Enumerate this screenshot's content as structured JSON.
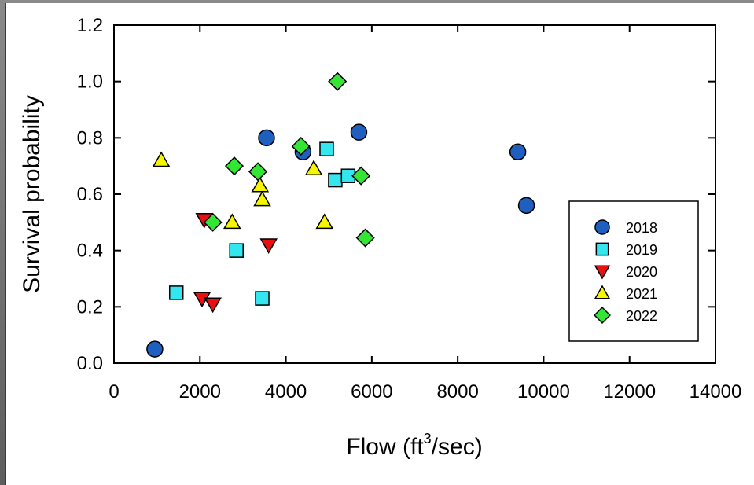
{
  "chart_data": {
    "type": "scatter",
    "title": "",
    "xlabel": "Flow (ft³/sec)",
    "xlabel_parts": {
      "prefix": "Flow (ft",
      "sup": "3",
      "suffix": "/sec)"
    },
    "ylabel": "Survival probability",
    "xlim": [
      0,
      14000
    ],
    "ylim": [
      0,
      1.2
    ],
    "x_ticks": [
      "0",
      "2000",
      "4000",
      "6000",
      "8000",
      "10000",
      "12000",
      "14000"
    ],
    "y_ticks": [
      "0.0",
      "0.2",
      "0.4",
      "0.6",
      "0.8",
      "1.0",
      "1.2"
    ],
    "grid": false,
    "legend_position": "bottom-right",
    "series": [
      {
        "name": "2018",
        "marker": "circle",
        "color": "#1f5fbf",
        "points": [
          {
            "x": 950,
            "y": 0.05
          },
          {
            "x": 3550,
            "y": 0.8
          },
          {
            "x": 4400,
            "y": 0.75
          },
          {
            "x": 5700,
            "y": 0.82
          },
          {
            "x": 9400,
            "y": 0.75
          },
          {
            "x": 9600,
            "y": 0.56
          }
        ]
      },
      {
        "name": "2019",
        "marker": "square",
        "color": "#33e6f0",
        "points": [
          {
            "x": 1450,
            "y": 0.25
          },
          {
            "x": 2850,
            "y": 0.4
          },
          {
            "x": 3450,
            "y": 0.23
          },
          {
            "x": 4950,
            "y": 0.76
          },
          {
            "x": 5150,
            "y": 0.65
          },
          {
            "x": 5450,
            "y": 0.665
          }
        ]
      },
      {
        "name": "2020",
        "marker": "triangle-down",
        "color": "#e81010",
        "points": [
          {
            "x": 2100,
            "y": 0.51
          },
          {
            "x": 2050,
            "y": 0.23
          },
          {
            "x": 2300,
            "y": 0.21
          },
          {
            "x": 3600,
            "y": 0.42
          }
        ]
      },
      {
        "name": "2021",
        "marker": "triangle-up",
        "color": "#f5f500",
        "points": [
          {
            "x": 1100,
            "y": 0.72
          },
          {
            "x": 2750,
            "y": 0.5
          },
          {
            "x": 3400,
            "y": 0.63
          },
          {
            "x": 3450,
            "y": 0.58
          },
          {
            "x": 4650,
            "y": 0.69
          },
          {
            "x": 4900,
            "y": 0.5
          }
        ]
      },
      {
        "name": "2022",
        "marker": "diamond",
        "color": "#33e633",
        "points": [
          {
            "x": 2300,
            "y": 0.5
          },
          {
            "x": 2800,
            "y": 0.7
          },
          {
            "x": 3350,
            "y": 0.68
          },
          {
            "x": 4350,
            "y": 0.77
          },
          {
            "x": 5200,
            "y": 1.0
          },
          {
            "x": 5750,
            "y": 0.665
          },
          {
            "x": 5850,
            "y": 0.445
          }
        ]
      }
    ]
  }
}
